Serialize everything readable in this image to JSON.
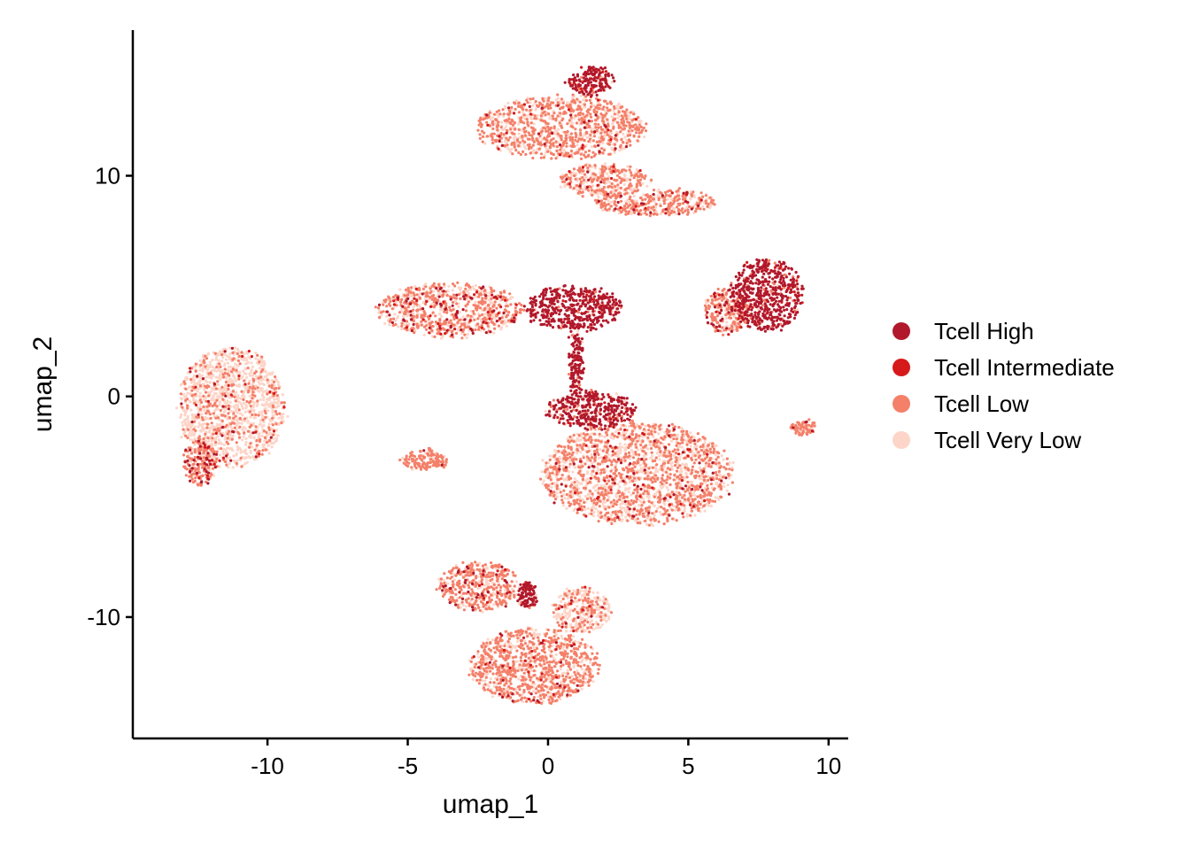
{
  "chart_data": {
    "type": "scatter",
    "title": "",
    "xlabel": "umap_1",
    "ylabel": "umap_2",
    "xlim": [
      -14.8,
      10.7
    ],
    "ylim": [
      -15.5,
      16.6
    ],
    "x_ticks": [
      -10,
      -5,
      0,
      5,
      10
    ],
    "y_ticks": [
      -10,
      0,
      10
    ],
    "x_tick_labels": [
      "-10",
      "-5",
      "0",
      "5",
      "10"
    ],
    "y_tick_labels": [
      "-10",
      "0",
      "10"
    ],
    "grid": false,
    "legend_position": "right",
    "series": [
      {
        "name": "Tcell High",
        "color": "#B2182B"
      },
      {
        "name": "Tcell Intermediate",
        "color": "#D6191B"
      },
      {
        "name": "Tcell Low",
        "color": "#F4806A"
      },
      {
        "name": "Tcell Very Low",
        "color": "#FDD5C8"
      }
    ],
    "clusters": [
      {
        "cx": 0.5,
        "cy": 12.2,
        "rx": 3.0,
        "ry": 1.4,
        "mix": [
          0.02,
          0.01,
          0.55,
          0.42
        ]
      },
      {
        "cx": 1.5,
        "cy": 14.3,
        "rx": 0.8,
        "ry": 0.6,
        "mix": [
          0.7,
          0.1,
          0.15,
          0.05
        ]
      },
      {
        "cx": 3.8,
        "cy": 8.8,
        "rx": 2.2,
        "ry": 0.6,
        "mix": [
          0.05,
          0.03,
          0.6,
          0.32
        ]
      },
      {
        "cx": 2.0,
        "cy": 9.8,
        "rx": 1.6,
        "ry": 0.7,
        "mix": [
          0.02,
          0.02,
          0.5,
          0.46
        ]
      },
      {
        "cx": 0.9,
        "cy": 4.0,
        "rx": 1.7,
        "ry": 1.0,
        "mix": [
          0.88,
          0.02,
          0.06,
          0.04
        ]
      },
      {
        "cx": -3.5,
        "cy": 3.9,
        "rx": 2.6,
        "ry": 1.2,
        "mix": [
          0.08,
          0.03,
          0.5,
          0.39
        ]
      },
      {
        "cx": 1.0,
        "cy": 1.5,
        "rx": 0.25,
        "ry": 1.4,
        "mix": [
          0.85,
          0.05,
          0.05,
          0.05
        ]
      },
      {
        "cx": 7.8,
        "cy": 4.6,
        "rx": 1.3,
        "ry": 1.6,
        "mix": [
          0.8,
          0.05,
          0.1,
          0.05
        ]
      },
      {
        "cx": 6.4,
        "cy": 3.9,
        "rx": 0.8,
        "ry": 1.0,
        "mix": [
          0.1,
          0.05,
          0.6,
          0.25
        ]
      },
      {
        "cx": -11.3,
        "cy": -0.5,
        "rx": 1.9,
        "ry": 2.7,
        "mix": [
          0.02,
          0.02,
          0.2,
          0.76
        ]
      },
      {
        "cx": -12.4,
        "cy": -3.0,
        "rx": 0.6,
        "ry": 1.0,
        "mix": [
          0.15,
          0.05,
          0.6,
          0.2
        ]
      },
      {
        "cx": -4.4,
        "cy": -2.9,
        "rx": 0.8,
        "ry": 0.4,
        "mix": [
          0.05,
          0.0,
          0.8,
          0.15
        ]
      },
      {
        "cx": 3.2,
        "cy": -3.5,
        "rx": 3.4,
        "ry": 2.3,
        "mix": [
          0.03,
          0.02,
          0.45,
          0.5
        ]
      },
      {
        "cx": 1.5,
        "cy": -0.6,
        "rx": 1.6,
        "ry": 0.8,
        "mix": [
          0.7,
          0.05,
          0.15,
          0.1
        ]
      },
      {
        "cx": 9.1,
        "cy": -1.4,
        "rx": 0.4,
        "ry": 0.3,
        "mix": [
          0.02,
          0.0,
          0.7,
          0.28
        ]
      },
      {
        "cx": -0.5,
        "cy": -12.2,
        "rx": 2.3,
        "ry": 1.7,
        "mix": [
          0.02,
          0.02,
          0.6,
          0.36
        ]
      },
      {
        "cx": -2.5,
        "cy": -8.6,
        "rx": 1.4,
        "ry": 1.1,
        "mix": [
          0.08,
          0.02,
          0.6,
          0.3
        ]
      },
      {
        "cx": -0.7,
        "cy": -9.0,
        "rx": 0.3,
        "ry": 0.6,
        "mix": [
          0.85,
          0.05,
          0.05,
          0.05
        ]
      },
      {
        "cx": 1.2,
        "cy": -9.7,
        "rx": 1.0,
        "ry": 1.0,
        "mix": [
          0.02,
          0.02,
          0.3,
          0.66
        ]
      }
    ]
  }
}
